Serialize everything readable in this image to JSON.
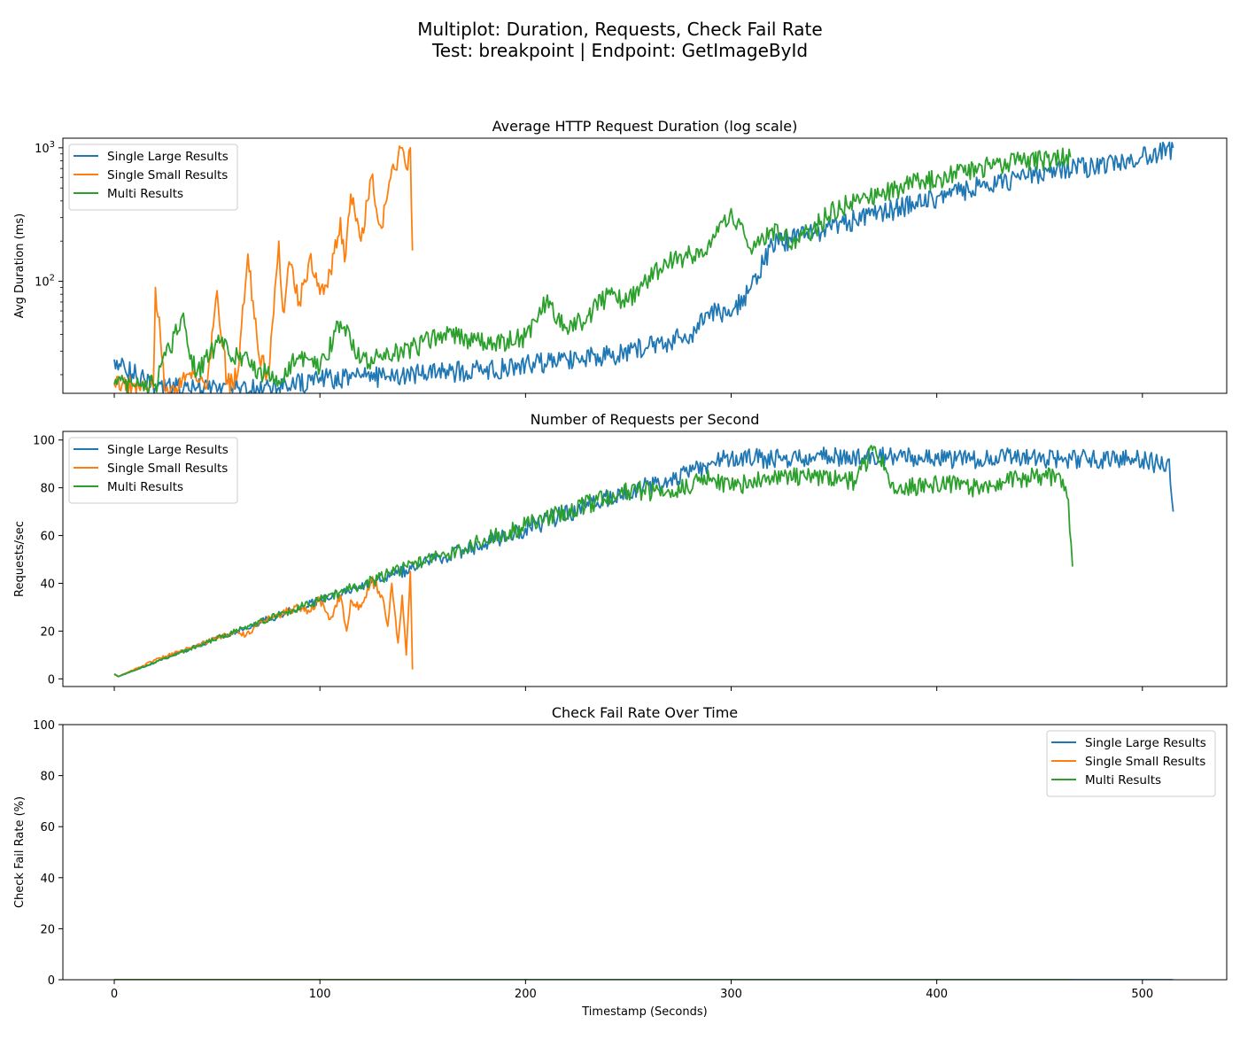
{
  "figure": {
    "title_line1": "Multiplot: Duration, Requests, Check Fail Rate",
    "title_line2": "Test: breakpoint | Endpoint: GetImageById"
  },
  "colors": {
    "single_large": "#1f77b4",
    "single_small": "#ff7f0e",
    "multi": "#2ca02c"
  },
  "chart_data": [
    {
      "type": "line",
      "title": "Average HTTP Request Duration (log scale)",
      "xlabel": "",
      "ylabel": "Avg Duration (ms)",
      "yscale": "log",
      "xlim": [
        -25,
        541
      ],
      "ylim": [
        14.5,
        1180
      ],
      "x_ticks": [
        0,
        100,
        200,
        300,
        400,
        500
      ],
      "y_ticks": [
        {
          "value": 100,
          "base": "10",
          "exp": "2"
        },
        {
          "value": 1000,
          "base": "10",
          "exp": "3"
        }
      ],
      "legend_position": "upper-left",
      "series": [
        {
          "name": "Single Large Results",
          "color_key": "single_large",
          "x": [
            0,
            20,
            40,
            60,
            80,
            100,
            120,
            140,
            160,
            180,
            200,
            220,
            240,
            260,
            280,
            290,
            300,
            310,
            320,
            340,
            360,
            380,
            400,
            420,
            440,
            460,
            480,
            500,
            515
          ],
          "y": [
            26,
            16,
            16,
            16,
            16,
            19,
            19,
            20,
            21,
            22,
            24,
            26,
            28,
            33,
            40,
            60,
            55,
            95,
            190,
            230,
            290,
            350,
            430,
            520,
            600,
            680,
            760,
            860,
            1000
          ]
        },
        {
          "name": "Single Small Results",
          "color_key": "single_small",
          "x": [
            0,
            10,
            17,
            19,
            20,
            25,
            30,
            35,
            40,
            45,
            50,
            55,
            60,
            65,
            70,
            75,
            80,
            82,
            85,
            90,
            95,
            100,
            105,
            110,
            112,
            115,
            120,
            125,
            130,
            135,
            138,
            140,
            142,
            144,
            145
          ],
          "y": [
            17,
            17,
            16,
            16,
            90,
            15,
            16,
            20,
            18,
            16,
            85,
            17,
            20,
            160,
            30,
            20,
            200,
            60,
            140,
            70,
            150,
            80,
            120,
            300,
            140,
            450,
            200,
            600,
            250,
            700,
            850,
            1000,
            700,
            1000,
            170
          ]
        },
        {
          "name": "Multi Results",
          "color_key": "multi",
          "x": [
            0,
            20,
            33,
            40,
            50,
            60,
            70,
            80,
            90,
            100,
            110,
            120,
            140,
            160,
            180,
            200,
            210,
            220,
            230,
            240,
            250,
            260,
            270,
            280,
            290,
            300,
            310,
            320,
            330,
            340,
            350,
            360,
            380,
            400,
            420,
            440,
            465
          ],
          "y": [
            17,
            17,
            55,
            20,
            35,
            28,
            22,
            18,
            28,
            22,
            50,
            25,
            30,
            40,
            35,
            38,
            70,
            45,
            55,
            80,
            70,
            110,
            140,
            160,
            180,
            350,
            160,
            250,
            200,
            250,
            350,
            400,
            500,
            600,
            700,
            800,
            850
          ]
        }
      ]
    },
    {
      "type": "line",
      "title": "Number of Requests per Second",
      "xlabel": "",
      "ylabel": "Requests/sec",
      "xlim": [
        -25,
        541
      ],
      "ylim": [
        -3.2,
        103.6
      ],
      "x_ticks": [
        0,
        100,
        200,
        300,
        400,
        500
      ],
      "y_ticks": [
        0,
        20,
        40,
        60,
        80,
        100
      ],
      "legend_position": "upper-left",
      "series": [
        {
          "name": "Single Large Results",
          "color_key": "single_large",
          "x": [
            0,
            2,
            50,
            100,
            150,
            200,
            250,
            270,
            290,
            300,
            320,
            340,
            360,
            380,
            400,
            420,
            440,
            460,
            480,
            500,
            510,
            513,
            515
          ],
          "y": [
            2,
            1,
            17,
            33,
            48,
            63,
            79,
            83,
            90,
            93,
            92,
            93,
            93,
            93,
            92,
            92,
            93,
            92,
            92,
            92,
            89,
            92,
            70
          ]
        },
        {
          "name": "Single Small Results",
          "color_key": "single_small",
          "x": [
            0,
            2,
            20,
            40,
            60,
            64,
            70,
            80,
            90,
            95,
            100,
            105,
            110,
            113,
            115,
            120,
            125,
            130,
            133,
            135,
            138,
            140,
            142,
            144,
            145
          ],
          "y": [
            2,
            1,
            8,
            14,
            20,
            18,
            23,
            27,
            30,
            28,
            33,
            25,
            35,
            20,
            33,
            30,
            42,
            35,
            22,
            40,
            15,
            35,
            10,
            45,
            4
          ]
        },
        {
          "name": "Multi Results",
          "color_key": "multi",
          "x": [
            0,
            2,
            50,
            100,
            150,
            200,
            250,
            270,
            290,
            300,
            320,
            340,
            360,
            370,
            380,
            400,
            420,
            440,
            460,
            464,
            466
          ],
          "y": [
            2,
            1,
            17,
            33,
            49,
            64,
            79,
            78,
            84,
            80,
            85,
            84,
            83,
            97,
            79,
            82,
            80,
            84,
            85,
            75,
            47
          ]
        }
      ]
    },
    {
      "type": "line",
      "title": "Check Fail Rate Over Time",
      "xlabel": "Timestamp (Seconds)",
      "ylabel": "Check Fail Rate (%)",
      "xlim": [
        -25,
        541
      ],
      "ylim": [
        0,
        100
      ],
      "x_ticks": [
        0,
        100,
        200,
        300,
        400,
        500
      ],
      "y_ticks": [
        0,
        20,
        40,
        60,
        80,
        100
      ],
      "legend_position": "upper-right",
      "series": [
        {
          "name": "Single Large Results",
          "color_key": "single_large",
          "x": [
            0,
            515
          ],
          "y": [
            0,
            0
          ]
        },
        {
          "name": "Single Small Results",
          "color_key": "single_small",
          "x": [
            0,
            145
          ],
          "y": [
            0,
            0
          ]
        },
        {
          "name": "Multi Results",
          "color_key": "multi",
          "x": [
            0,
            466
          ],
          "y": [
            0,
            0
          ]
        }
      ]
    }
  ]
}
